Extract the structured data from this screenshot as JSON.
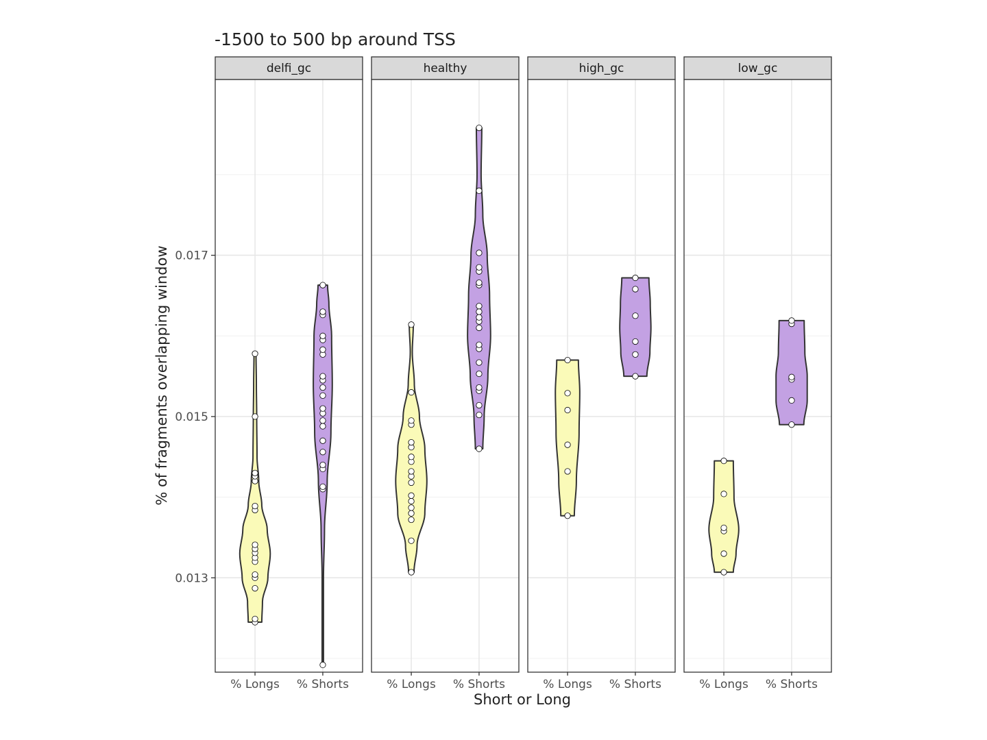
{
  "chart_data": {
    "type": "violin",
    "title": "-1500 to 500 bp around TSS",
    "xlabel": "Short or Long",
    "ylabel": "% of fragments overlapping window",
    "ylim": [
      0.01183,
      0.01918
    ],
    "yticks": [
      0.013,
      0.015,
      0.017
    ],
    "ytick_labels": [
      "0.013",
      "0.015",
      "0.017"
    ],
    "categories": [
      "% Longs",
      "% Shorts"
    ],
    "colors": {
      "% Longs": "#fafab8",
      "% Shorts": "#c3a1e3"
    },
    "grid": true,
    "facets": [
      {
        "name": "delfi_gc",
        "series": [
          {
            "name": "% Longs",
            "values": [
              0.01245,
              0.01249,
              0.01287,
              0.013,
              0.01304,
              0.0132,
              0.01325,
              0.01331,
              0.01336,
              0.01341,
              0.01384,
              0.01389,
              0.0142,
              0.01426,
              0.0143,
              0.015,
              0.01578
            ],
            "shape": [
              [
                0.01245,
                0.2
              ],
              [
                0.0127,
                0.22
              ],
              [
                0.013,
                0.38
              ],
              [
                0.0133,
                0.45
              ],
              [
                0.0136,
                0.36
              ],
              [
                0.0139,
                0.2
              ],
              [
                0.0142,
                0.11
              ],
              [
                0.0145,
                0.06
              ],
              [
                0.015,
                0.05
              ],
              [
                0.0154,
                0.04
              ],
              [
                0.01578,
                0.03
              ]
            ]
          },
          {
            "name": "% Shorts",
            "values": [
              0.01192,
              0.0141,
              0.01413,
              0.01435,
              0.0144,
              0.01456,
              0.0147,
              0.01488,
              0.01495,
              0.01504,
              0.0151,
              0.01526,
              0.01536,
              0.01545,
              0.0155,
              0.01577,
              0.01583,
              0.01595,
              0.016,
              0.01626,
              0.0163,
              0.01663
            ],
            "shape": [
              [
                0.01192,
                0.02
              ],
              [
                0.013,
                0.02
              ],
              [
                0.0136,
                0.05
              ],
              [
                0.0142,
                0.13
              ],
              [
                0.0148,
                0.24
              ],
              [
                0.0154,
                0.28
              ],
              [
                0.016,
                0.26
              ],
              [
                0.0164,
                0.18
              ],
              [
                0.01663,
                0.14
              ]
            ]
          }
        ]
      },
      {
        "name": "healthy",
        "series": [
          {
            "name": "% Longs",
            "values": [
              0.01307,
              0.01346,
              0.01372,
              0.0138,
              0.01387,
              0.01395,
              0.01402,
              0.01418,
              0.01426,
              0.01432,
              0.01444,
              0.0145,
              0.01462,
              0.01468,
              0.0149,
              0.01495,
              0.0153,
              0.01614
            ],
            "shape": [
              [
                0.01307,
                0.08
              ],
              [
                0.0134,
                0.17
              ],
              [
                0.0138,
                0.4
              ],
              [
                0.0142,
                0.46
              ],
              [
                0.0146,
                0.4
              ],
              [
                0.015,
                0.24
              ],
              [
                0.0154,
                0.09
              ],
              [
                0.0158,
                0.03
              ],
              [
                0.01614,
                0.06
              ]
            ]
          },
          {
            "name": "% Shorts",
            "values": [
              0.0146,
              0.01502,
              0.01514,
              0.01532,
              0.01536,
              0.01553,
              0.01567,
              0.01584,
              0.01589,
              0.0161,
              0.01618,
              0.01623,
              0.0163,
              0.01637,
              0.01663,
              0.01666,
              0.0168,
              0.01685,
              0.01703,
              0.0178,
              0.01858
            ],
            "shape": [
              [
                0.0146,
                0.11
              ],
              [
                0.015,
                0.15
              ],
              [
                0.0155,
                0.26
              ],
              [
                0.016,
                0.34
              ],
              [
                0.0165,
                0.31
              ],
              [
                0.017,
                0.24
              ],
              [
                0.0175,
                0.11
              ],
              [
                0.018,
                0.06
              ],
              [
                0.01858,
                0.08
              ]
            ]
          }
        ]
      },
      {
        "name": "high_gc",
        "series": [
          {
            "name": "% Longs",
            "values": [
              0.01377,
              0.01432,
              0.01465,
              0.01508,
              0.01529,
              0.0157
            ],
            "shape": [
              [
                0.01377,
                0.2
              ],
              [
                0.0142,
                0.26
              ],
              [
                0.0148,
                0.34
              ],
              [
                0.0153,
                0.36
              ],
              [
                0.0157,
                0.32
              ]
            ]
          },
          {
            "name": "% Shorts",
            "values": [
              0.0155,
              0.01577,
              0.01593,
              0.01625,
              0.01658,
              0.01672
            ],
            "shape": [
              [
                0.0155,
                0.34
              ],
              [
                0.0158,
                0.43
              ],
              [
                0.0161,
                0.46
              ],
              [
                0.0164,
                0.44
              ],
              [
                0.01672,
                0.4
              ]
            ]
          }
        ]
      },
      {
        "name": "low_gc",
        "series": [
          {
            "name": "% Longs",
            "values": [
              0.01307,
              0.0133,
              0.01358,
              0.01362,
              0.01404,
              0.01445
            ],
            "shape": [
              [
                0.01307,
                0.28
              ],
              [
                0.0133,
                0.36
              ],
              [
                0.0136,
                0.44
              ],
              [
                0.014,
                0.3
              ],
              [
                0.01445,
                0.28
              ]
            ]
          },
          {
            "name": "% Shorts",
            "values": [
              0.0149,
              0.0152,
              0.01546,
              0.01549,
              0.01615,
              0.01619
            ],
            "shape": [
              [
                0.0149,
                0.36
              ],
              [
                0.0152,
                0.46
              ],
              [
                0.0155,
                0.46
              ],
              [
                0.0158,
                0.39
              ],
              [
                0.01619,
                0.37
              ]
            ]
          }
        ]
      }
    ]
  }
}
